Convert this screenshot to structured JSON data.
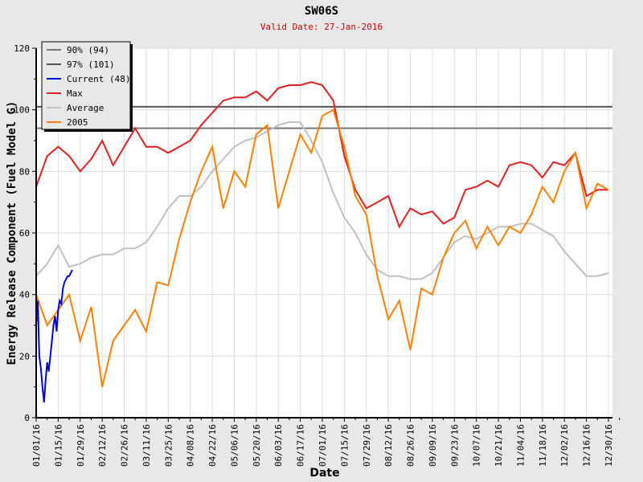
{
  "chart_data": {
    "type": "line",
    "title": "SW06S",
    "subtitle": "Valid Date: 27-Jan-2016",
    "xlabel": "Date",
    "ylabel": "Energy Release Component (Fuel Model G)",
    "ylim": [
      0,
      120
    ],
    "yticks": [
      0,
      20,
      40,
      60,
      80,
      100,
      120
    ],
    "xlim_days": [
      0,
      364
    ],
    "xtick_labels": [
      "01/01/16",
      "01/15/16",
      "01/29/16",
      "02/12/16",
      "02/26/16",
      "03/11/16",
      "03/25/16",
      "04/08/16",
      "04/22/16",
      "05/06/16",
      "05/20/16",
      "06/03/16",
      "06/17/16",
      "07/01/16",
      "07/15/16",
      "07/29/16",
      "08/12/16",
      "08/26/16",
      "09/09/16",
      "09/23/16",
      "10/07/16",
      "10/21/16",
      "11/04/16",
      "11/18/16",
      "12/02/16",
      "12/16/16",
      "12/30/16"
    ],
    "legend_position": "top-left",
    "hlines": [
      {
        "name": "90% (94)",
        "value": 94,
        "color": "#777777"
      },
      {
        "name": "97% (101)",
        "value": 101,
        "color": "#555555"
      }
    ],
    "series": [
      {
        "name": "Current (48)",
        "color": "#0000dd",
        "x_step_days": 1,
        "x_start": 0,
        "values": [
          30,
          38,
          20,
          16,
          10,
          5,
          12,
          18,
          15,
          20,
          25,
          30,
          33,
          28,
          35,
          38,
          37,
          42,
          44,
          45,
          46,
          46,
          47,
          48
        ]
      },
      {
        "name": "Max",
        "color": "#e02020",
        "x_step_days": 7,
        "x_start": 0,
        "values": [
          75,
          85,
          88,
          85,
          80,
          84,
          90,
          82,
          88,
          94,
          88,
          88,
          86,
          88,
          90,
          95,
          99,
          103,
          104,
          104,
          106,
          103,
          107,
          108,
          108,
          109,
          108,
          103,
          85,
          74,
          68,
          70,
          72,
          62,
          68,
          66,
          67,
          63,
          65,
          74,
          75,
          77,
          75,
          82,
          83,
          82,
          78,
          83,
          82,
          86,
          72,
          74,
          74
        ]
      },
      {
        "name": "Average",
        "color": "#c0c0c0",
        "x_step_days": 7,
        "x_start": 0,
        "values": [
          46,
          50,
          56,
          49,
          50,
          52,
          53,
          53,
          55,
          55,
          57,
          62,
          68,
          72,
          72,
          75,
          80,
          84,
          88,
          90,
          91,
          93,
          95,
          96,
          96,
          90,
          83,
          73,
          65,
          60,
          53,
          48,
          46,
          46,
          45,
          45,
          47,
          52,
          57,
          59,
          58,
          60,
          62,
          62,
          63,
          63,
          61,
          59,
          54,
          50,
          46,
          46,
          47
        ]
      },
      {
        "name": "2005",
        "color": "#ff8000",
        "x_step_days": 7,
        "x_start": 0,
        "values": [
          40,
          30,
          35,
          40,
          25,
          36,
          10,
          25,
          30,
          35,
          28,
          44,
          43,
          58,
          70,
          80,
          88,
          68,
          80,
          75,
          92,
          95,
          68,
          80,
          92,
          86,
          98,
          100,
          88,
          72,
          66,
          46,
          32,
          38,
          22,
          42,
          40,
          52,
          60,
          64,
          55,
          62,
          56,
          62,
          60,
          66,
          75,
          70,
          80,
          86,
          68,
          76,
          74
        ]
      }
    ]
  }
}
